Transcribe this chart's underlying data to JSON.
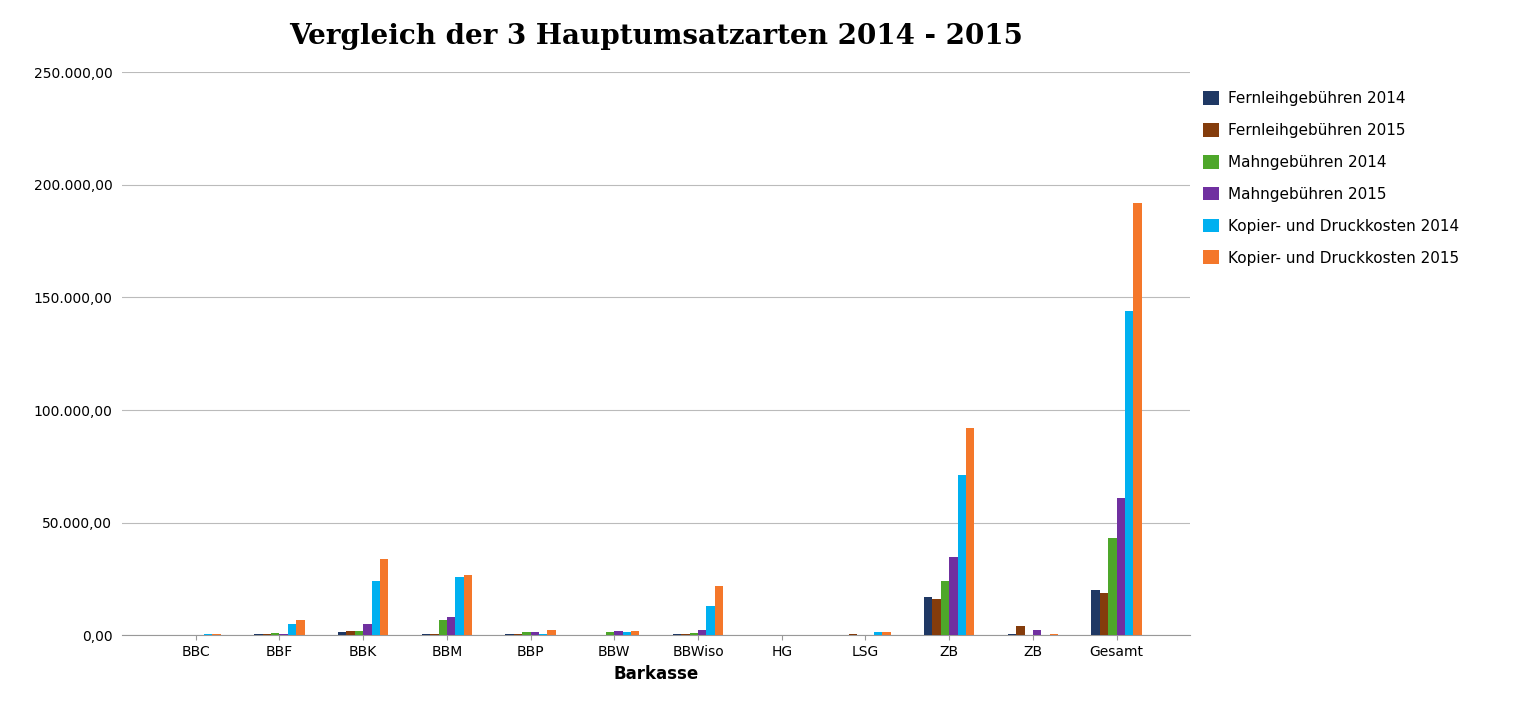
{
  "title": "Vergleich der 3 Hauptumsatzarten 2014 - 2015",
  "xlabel": "Barkasse",
  "categories": [
    "BBC",
    "BBF",
    "BBK",
    "BBM",
    "BBP",
    "BBW",
    "BBWiso",
    "HG",
    "LSG",
    "ZB",
    "ZB",
    "Gesamt"
  ],
  "series": [
    {
      "label": "Fernleihgebühren 2014",
      "color": "#1F3864",
      "values": [
        300,
        500,
        1500,
        700,
        500,
        300,
        500,
        100,
        200,
        17000,
        500,
        20000
      ]
    },
    {
      "label": "Fernleihgebühren 2015",
      "color": "#843C0C",
      "values": [
        300,
        500,
        1800,
        600,
        500,
        300,
        600,
        100,
        800,
        16000,
        4000,
        19000
      ]
    },
    {
      "label": "Mahngebühren 2014",
      "color": "#4EA72A",
      "values": [
        300,
        1000,
        2000,
        7000,
        1500,
        1500,
        1000,
        100,
        200,
        24000,
        200,
        43000
      ]
    },
    {
      "label": "Mahngebühren 2015",
      "color": "#7030A0",
      "values": [
        300,
        500,
        5000,
        8000,
        1500,
        2000,
        2500,
        100,
        200,
        35000,
        2500,
        61000
      ]
    },
    {
      "label": "Kopier- und Druckkosten 2014",
      "color": "#00B0F0",
      "values": [
        500,
        5000,
        24000,
        26000,
        500,
        1500,
        13000,
        300,
        1500,
        71000,
        300,
        144000
      ]
    },
    {
      "label": "Kopier- und Druckkosten 2015",
      "color": "#F4772A",
      "values": [
        500,
        7000,
        34000,
        27000,
        2500,
        2000,
        22000,
        300,
        1500,
        92000,
        500,
        192000
      ]
    }
  ],
  "ylim": [
    0,
    250000
  ],
  "yticks": [
    0,
    50000,
    100000,
    150000,
    200000,
    250000
  ],
  "background_color": "#FFFFFF",
  "plot_background": "#FFFFFF",
  "title_fontsize": 20,
  "axis_label_fontsize": 12,
  "tick_fontsize": 10,
  "legend_fontsize": 11,
  "bar_width": 0.1,
  "grid_color": "#BBBBBB",
  "grid_linewidth": 0.8
}
